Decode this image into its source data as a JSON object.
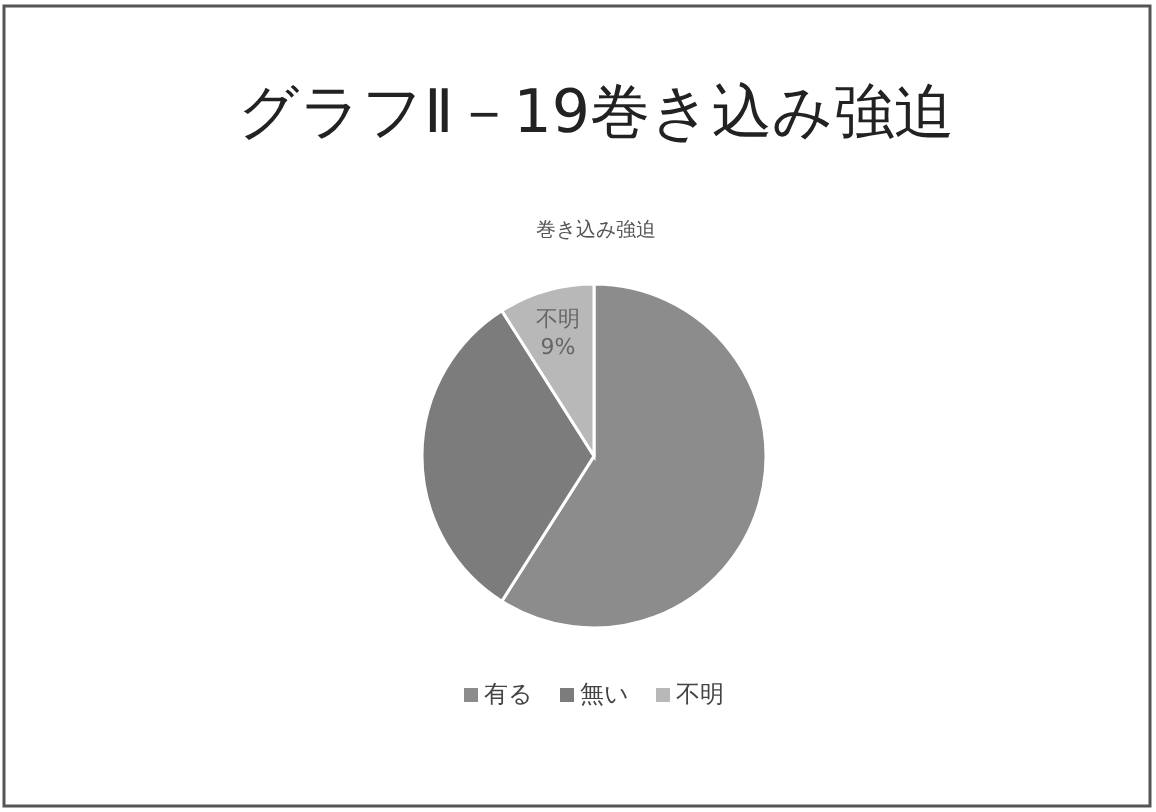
{
  "chart_data": {
    "type": "pie",
    "title": "グラフⅡ－19巻き込み強迫",
    "subtitle": "巻き込み強迫",
    "categories": [
      "有る",
      "無い",
      "不明"
    ],
    "values": [
      59,
      32,
      9
    ],
    "colors": [
      "#8c8c8c",
      "#7c7c7c",
      "#b8b8b8"
    ],
    "value_labels": [
      null,
      null,
      "9%"
    ],
    "legend": "bottom"
  }
}
